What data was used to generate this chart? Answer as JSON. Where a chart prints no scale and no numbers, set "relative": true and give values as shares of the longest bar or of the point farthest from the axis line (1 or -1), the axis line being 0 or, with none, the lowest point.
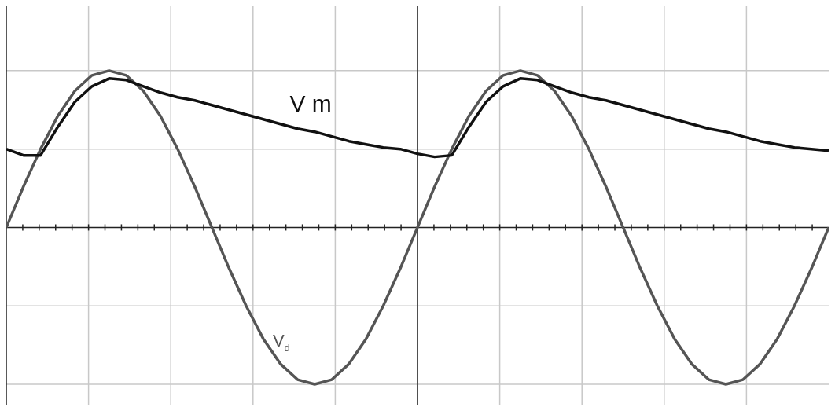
{
  "chart_data": {
    "type": "line",
    "relative": true,
    "grid": true,
    "legend": false,
    "marker": "none",
    "line_style": "solid",
    "categories": [
      null,
      null,
      null,
      null,
      null,
      null,
      null,
      null,
      null,
      null,
      null,
      null,
      null,
      null,
      null,
      null,
      null,
      null,
      null,
      null,
      null,
      null,
      null,
      null,
      null,
      null,
      null,
      null,
      null,
      null,
      null,
      null,
      null,
      null,
      null,
      null,
      null,
      null,
      null,
      null,
      null,
      null,
      null,
      null,
      null,
      null,
      null,
      null,
      null
    ],
    "series": [
      {
        "name": "V m",
        "color": "#111111",
        "values": [
          0.5,
          0.46,
          0.46,
          0.64,
          0.8,
          0.9,
          0.95,
          0.94,
          0.9,
          0.86,
          0.83,
          0.81,
          0.78,
          0.75,
          0.72,
          0.69,
          0.66,
          0.63,
          0.61,
          0.58,
          0.55,
          0.53,
          0.51,
          0.5,
          0.47,
          0.45,
          0.46,
          0.64,
          0.8,
          0.9,
          0.95,
          0.94,
          0.9,
          0.86,
          0.83,
          0.81,
          0.78,
          0.75,
          0.72,
          0.69,
          0.66,
          0.63,
          0.61,
          0.58,
          0.55,
          0.53,
          0.51,
          0.5,
          0.49
        ]
      },
      {
        "name": "V$_{d}$",
        "color": "#555555",
        "values": [
          0,
          0.26,
          0.5,
          0.71,
          0.87,
          0.97,
          1,
          0.97,
          0.87,
          0.71,
          0.5,
          0.26,
          0,
          -0.26,
          -0.5,
          -0.71,
          -0.87,
          -0.97,
          -1,
          -0.97,
          -0.87,
          -0.71,
          -0.5,
          -0.26,
          0,
          0.26,
          0.5,
          0.71,
          0.87,
          0.97,
          1,
          0.97,
          0.87,
          0.71,
          0.5,
          0.26,
          0,
          -0.26,
          -0.5,
          -0.71,
          -0.87,
          -0.97,
          -1,
          -0.97,
          -0.87,
          -0.71,
          -0.5,
          -0.26,
          0
        ]
      }
    ]
  }
}
